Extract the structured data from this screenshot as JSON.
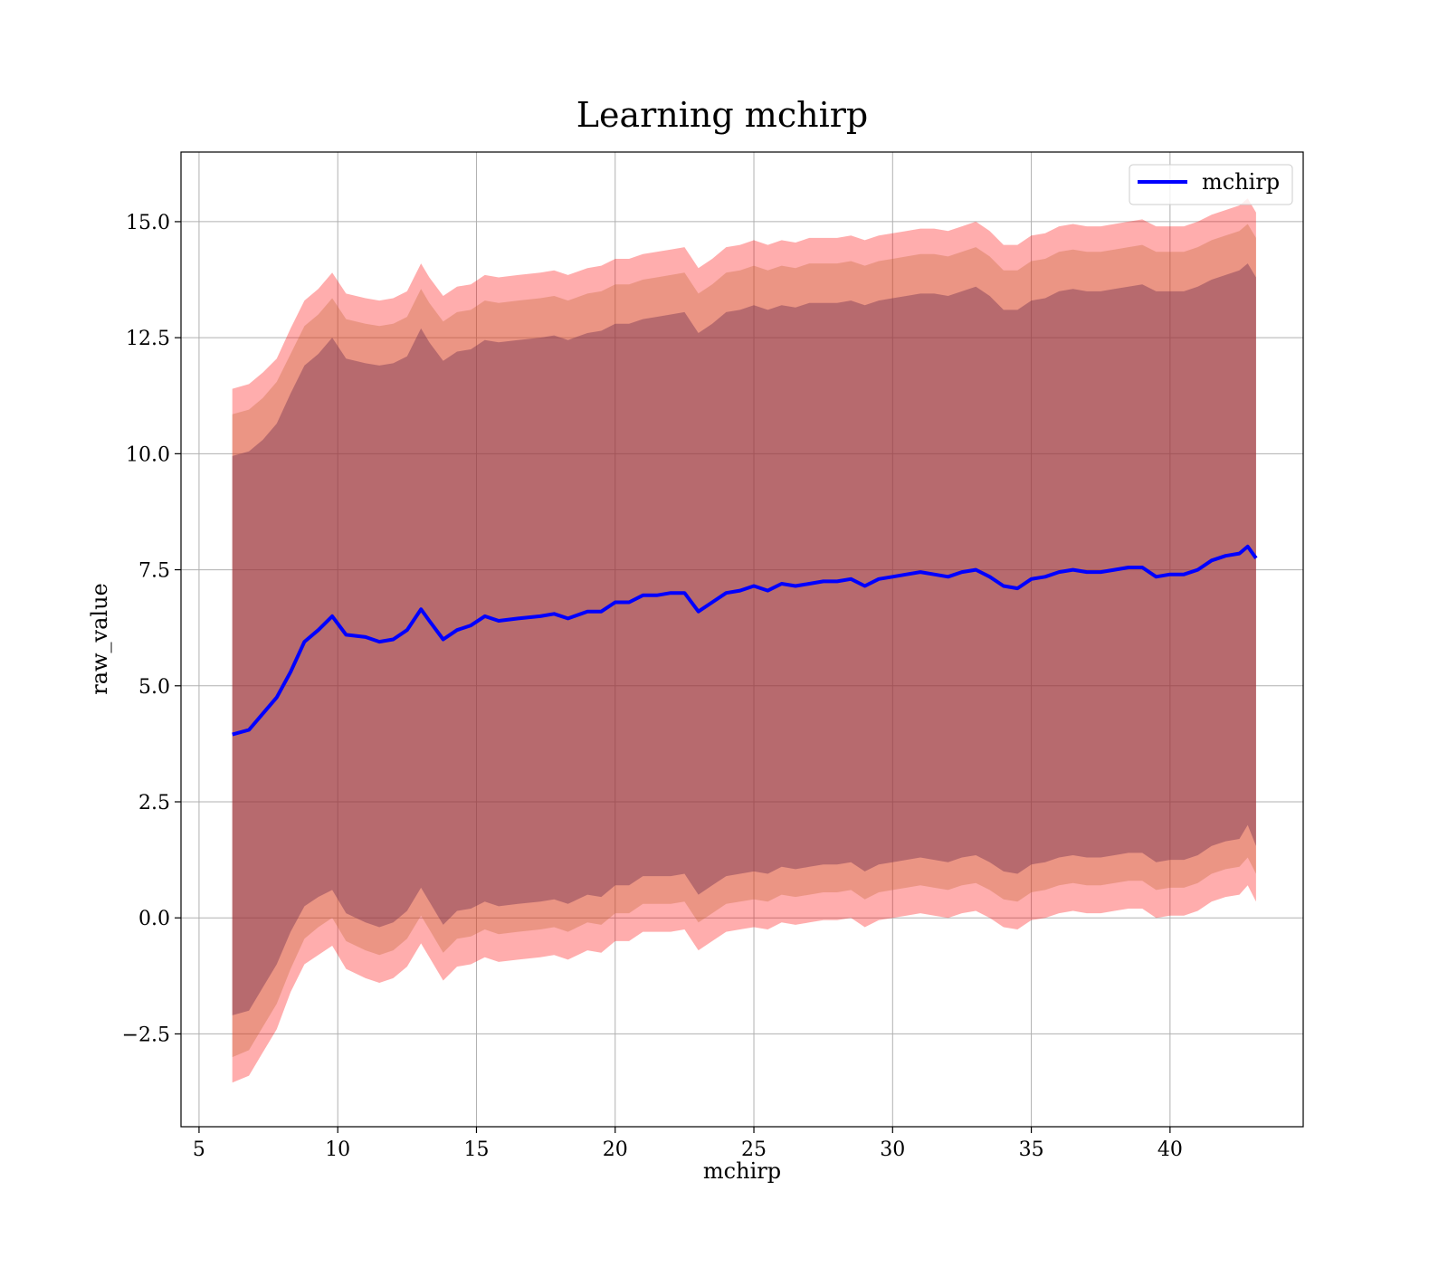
{
  "chart_data": {
    "type": "line",
    "title": "Learning mchirp",
    "xlabel": "mchirp",
    "ylabel": "raw_value",
    "xlim": [
      4.35,
      44.8
    ],
    "ylim": [
      -4.5,
      16.5
    ],
    "xticks": [
      5,
      10,
      15,
      20,
      25,
      30,
      35,
      40
    ],
    "xtick_labels": [
      "5",
      "10",
      "15",
      "20",
      "25",
      "30",
      "35",
      "40"
    ],
    "yticks": [
      -2.5,
      0.0,
      2.5,
      5.0,
      7.5,
      10.0,
      12.5,
      15.0
    ],
    "ytick_labels": [
      "−2.5",
      "0.0",
      "2.5",
      "5.0",
      "7.5",
      "10.0",
      "12.5",
      "15.0"
    ],
    "grid": true,
    "legend": {
      "position": "top-right",
      "entries": [
        "mchirp"
      ]
    },
    "colors": {
      "line": "#0000ff",
      "band_outer": "#ff0000",
      "band_middle": "#c06430",
      "band_inner": "#703050",
      "grid": "#b0b0b0"
    },
    "series": [
      {
        "name": "mchirp",
        "x": [
          6.2,
          6.8,
          7.3,
          7.8,
          8.3,
          8.8,
          9.3,
          9.8,
          10.3,
          11.0,
          11.5,
          12.0,
          12.5,
          13.0,
          13.3,
          13.8,
          14.3,
          14.8,
          15.3,
          15.8,
          16.5,
          17.3,
          17.8,
          18.3,
          19.0,
          19.5,
          20.0,
          20.5,
          21.0,
          21.5,
          22.0,
          22.5,
          23.0,
          23.5,
          24.0,
          24.5,
          25.0,
          25.5,
          26.0,
          26.5,
          27.0,
          27.5,
          28.0,
          28.5,
          29.0,
          29.5,
          30.0,
          30.5,
          31.0,
          31.5,
          32.0,
          32.5,
          33.0,
          33.5,
          34.0,
          34.5,
          35.0,
          35.5,
          36.0,
          36.5,
          37.0,
          37.5,
          38.0,
          38.5,
          39.0,
          39.5,
          40.0,
          40.5,
          41.0,
          41.5,
          42.0,
          42.5,
          42.8,
          43.1
        ],
        "mean": [
          3.95,
          4.05,
          4.4,
          4.75,
          5.3,
          5.95,
          6.2,
          6.5,
          6.1,
          6.05,
          5.95,
          6.0,
          6.2,
          6.65,
          6.4,
          6.0,
          6.2,
          6.3,
          6.5,
          6.4,
          6.45,
          6.5,
          6.55,
          6.45,
          6.6,
          6.6,
          6.8,
          6.8,
          6.95,
          6.95,
          7.0,
          7.0,
          6.6,
          6.8,
          7.0,
          7.05,
          7.15,
          7.05,
          7.2,
          7.15,
          7.2,
          7.25,
          7.25,
          7.3,
          7.15,
          7.3,
          7.35,
          7.4,
          7.45,
          7.4,
          7.35,
          7.45,
          7.5,
          7.35,
          7.15,
          7.1,
          7.3,
          7.35,
          7.45,
          7.5,
          7.45,
          7.45,
          7.5,
          7.55,
          7.55,
          7.35,
          7.4,
          7.4,
          7.5,
          7.7,
          7.8,
          7.85,
          8.0,
          7.75
        ],
        "bands": [
          {
            "level": "outer",
            "lower": [
              -3.55,
              -3.4,
              -2.9,
              -2.4,
              -1.6,
              -1.0,
              -0.8,
              -0.6,
              -1.1,
              -1.3,
              -1.4,
              -1.3,
              -1.05,
              -0.55,
              -0.85,
              -1.35,
              -1.05,
              -1.0,
              -0.85,
              -0.95,
              -0.9,
              -0.85,
              -0.8,
              -0.9,
              -0.7,
              -0.75,
              -0.5,
              -0.5,
              -0.3,
              -0.3,
              -0.3,
              -0.25,
              -0.7,
              -0.5,
              -0.3,
              -0.25,
              -0.2,
              -0.25,
              -0.1,
              -0.15,
              -0.1,
              -0.05,
              -0.05,
              0.0,
              -0.2,
              -0.05,
              0.0,
              0.05,
              0.1,
              0.05,
              0.0,
              0.1,
              0.15,
              0.0,
              -0.2,
              -0.25,
              -0.05,
              0.0,
              0.1,
              0.15,
              0.1,
              0.1,
              0.15,
              0.2,
              0.2,
              0.0,
              0.05,
              0.05,
              0.15,
              0.35,
              0.45,
              0.5,
              0.7,
              0.35
            ],
            "upper": [
              11.4,
              11.5,
              11.75,
              12.05,
              12.7,
              13.3,
              13.55,
              13.9,
              13.45,
              13.35,
              13.3,
              13.35,
              13.5,
              14.1,
              13.8,
              13.4,
              13.6,
              13.65,
              13.85,
              13.8,
              13.85,
              13.9,
              13.95,
              13.85,
              14.0,
              14.05,
              14.2,
              14.2,
              14.3,
              14.35,
              14.4,
              14.45,
              14.0,
              14.2,
              14.45,
              14.5,
              14.6,
              14.5,
              14.6,
              14.55,
              14.65,
              14.65,
              14.65,
              14.7,
              14.6,
              14.7,
              14.75,
              14.8,
              14.85,
              14.85,
              14.8,
              14.9,
              15.0,
              14.8,
              14.5,
              14.5,
              14.7,
              14.75,
              14.9,
              14.95,
              14.9,
              14.9,
              14.95,
              15.0,
              15.05,
              14.9,
              14.9,
              14.9,
              15.0,
              15.15,
              15.25,
              15.35,
              15.5,
              15.2
            ]
          },
          {
            "level": "middle",
            "lower": [
              -3.0,
              -2.85,
              -2.35,
              -1.85,
              -1.1,
              -0.45,
              -0.2,
              0.0,
              -0.5,
              -0.7,
              -0.8,
              -0.7,
              -0.45,
              0.05,
              -0.25,
              -0.75,
              -0.45,
              -0.4,
              -0.25,
              -0.35,
              -0.3,
              -0.25,
              -0.2,
              -0.3,
              -0.1,
              -0.15,
              0.1,
              0.1,
              0.3,
              0.3,
              0.3,
              0.35,
              -0.1,
              0.1,
              0.3,
              0.35,
              0.4,
              0.35,
              0.5,
              0.45,
              0.5,
              0.55,
              0.55,
              0.6,
              0.4,
              0.55,
              0.6,
              0.65,
              0.7,
              0.65,
              0.6,
              0.7,
              0.75,
              0.6,
              0.4,
              0.35,
              0.55,
              0.6,
              0.7,
              0.75,
              0.7,
              0.7,
              0.75,
              0.8,
              0.8,
              0.6,
              0.65,
              0.65,
              0.75,
              0.95,
              1.05,
              1.1,
              1.3,
              0.95
            ],
            "upper": [
              10.85,
              10.95,
              11.2,
              11.55,
              12.15,
              12.75,
              13.0,
              13.35,
              12.9,
              12.8,
              12.75,
              12.8,
              12.95,
              13.55,
              13.25,
              12.85,
              13.05,
              13.1,
              13.3,
              13.25,
              13.3,
              13.35,
              13.4,
              13.3,
              13.45,
              13.5,
              13.65,
              13.65,
              13.75,
              13.8,
              13.85,
              13.9,
              13.45,
              13.65,
              13.9,
              13.95,
              14.05,
              13.95,
              14.05,
              14.0,
              14.1,
              14.1,
              14.1,
              14.15,
              14.05,
              14.15,
              14.2,
              14.25,
              14.3,
              14.3,
              14.25,
              14.35,
              14.45,
              14.25,
              13.95,
              13.95,
              14.15,
              14.2,
              14.35,
              14.4,
              14.35,
              14.35,
              14.4,
              14.45,
              14.5,
              14.35,
              14.35,
              14.35,
              14.45,
              14.6,
              14.7,
              14.8,
              14.95,
              14.65
            ]
          },
          {
            "level": "inner",
            "lower": [
              -2.1,
              -2.0,
              -1.5,
              -1.0,
              -0.3,
              0.25,
              0.45,
              0.6,
              0.1,
              -0.1,
              -0.2,
              -0.1,
              0.15,
              0.65,
              0.35,
              -0.15,
              0.15,
              0.2,
              0.35,
              0.25,
              0.3,
              0.35,
              0.4,
              0.3,
              0.5,
              0.45,
              0.7,
              0.7,
              0.9,
              0.9,
              0.9,
              0.95,
              0.5,
              0.7,
              0.9,
              0.95,
              1.0,
              0.95,
              1.1,
              1.05,
              1.1,
              1.15,
              1.15,
              1.2,
              1.0,
              1.15,
              1.2,
              1.25,
              1.3,
              1.25,
              1.2,
              1.3,
              1.35,
              1.2,
              1.0,
              0.95,
              1.15,
              1.2,
              1.3,
              1.35,
              1.3,
              1.3,
              1.35,
              1.4,
              1.4,
              1.2,
              1.25,
              1.25,
              1.35,
              1.55,
              1.65,
              1.7,
              2.0,
              1.55
            ],
            "upper": [
              9.95,
              10.05,
              10.3,
              10.65,
              11.3,
              11.9,
              12.15,
              12.5,
              12.05,
              11.95,
              11.9,
              11.95,
              12.1,
              12.7,
              12.4,
              12.0,
              12.2,
              12.25,
              12.45,
              12.4,
              12.45,
              12.5,
              12.55,
              12.45,
              12.6,
              12.65,
              12.8,
              12.8,
              12.9,
              12.95,
              13.0,
              13.05,
              12.6,
              12.8,
              13.05,
              13.1,
              13.2,
              13.1,
              13.2,
              13.15,
              13.25,
              13.25,
              13.25,
              13.3,
              13.2,
              13.3,
              13.35,
              13.4,
              13.45,
              13.45,
              13.4,
              13.5,
              13.6,
              13.4,
              13.1,
              13.1,
              13.3,
              13.35,
              13.5,
              13.55,
              13.5,
              13.5,
              13.55,
              13.6,
              13.65,
              13.5,
              13.5,
              13.5,
              13.6,
              13.75,
              13.85,
              13.95,
              14.1,
              13.8
            ]
          }
        ]
      }
    ]
  }
}
